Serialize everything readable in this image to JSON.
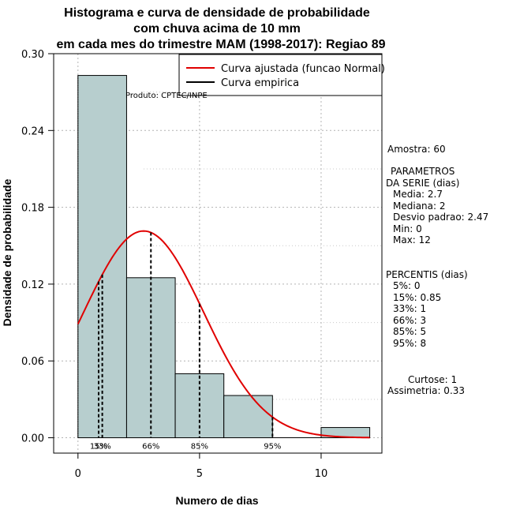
{
  "chart_data": {
    "type": "bar",
    "title_lines": [
      "Histograma e curva de densidade de probabilidade",
      "com chuva acima de 10 mm",
      "em cada mes do trimestre MAM (1998-2017): Regiao 89"
    ],
    "xlabel": "Numero de dias",
    "ylabel": "Densidade de probabilidade",
    "xlim": [
      -1,
      12.5
    ],
    "ylim": [
      -0.012,
      0.3
    ],
    "x_ticks": [
      0,
      5,
      10
    ],
    "y_ticks": [
      "0.00",
      "0.06",
      "0.12",
      "0.18",
      "0.24",
      "0.30"
    ],
    "bins": [
      {
        "from": 0,
        "to": 2,
        "density": 0.283
      },
      {
        "from": 2,
        "to": 4,
        "density": 0.125
      },
      {
        "from": 4,
        "to": 6,
        "density": 0.05
      },
      {
        "from": 6,
        "to": 8,
        "density": 0.033
      },
      {
        "from": 8,
        "to": 10,
        "density": 0.0
      },
      {
        "from": 10,
        "to": 12,
        "density": 0.008
      }
    ],
    "normal_fit": {
      "mean": 2.7,
      "sd": 2.47,
      "x_from": 0,
      "x_to": 12
    },
    "percentile_lines": [
      {
        "label": "5%",
        "x": 0
      },
      {
        "label": "15%",
        "x": 0.85
      },
      {
        "label": "33%",
        "x": 1
      },
      {
        "label": "66%",
        "x": 3
      },
      {
        "label": "85%",
        "x": 5
      },
      {
        "label": "95%",
        "x": 8
      }
    ],
    "percentile_tick_labels": [
      {
        "label": "15%",
        "x": 0.85
      },
      {
        "label": "33%",
        "x": 1
      },
      {
        "label": "66%",
        "x": 3
      },
      {
        "label": "85%",
        "x": 5
      },
      {
        "label": "95%",
        "x": 8
      }
    ],
    "legend": {
      "position": "top-right",
      "entries": [
        {
          "label": "Curva ajustada (funcao Normal)",
          "color": "#e00000"
        },
        {
          "label": "Curva empirica",
          "color": "#000000"
        }
      ]
    },
    "annotation": "Produto: CPTEC/INPE",
    "bar_color": "#b7cece",
    "curve_color": "#e00000",
    "grid": true
  },
  "stats": {
    "amostra": "Amostra: 60",
    "param_header1": "PARAMETROS",
    "param_header2": "DA SERIE (dias)",
    "params": [
      "Media: 2.7",
      "Mediana: 2",
      "Desvio padrao: 2.47",
      "Min: 0",
      "Max: 12"
    ],
    "perc_header": "PERCENTIS (dias)",
    "percentis": [
      "5%: 0",
      "15%: 0.85",
      "33%: 1",
      "66%: 3",
      "85%: 5",
      "95%: 8"
    ],
    "curtose": "Curtose: 1",
    "assimetria": "Assimetria: 0.33"
  }
}
